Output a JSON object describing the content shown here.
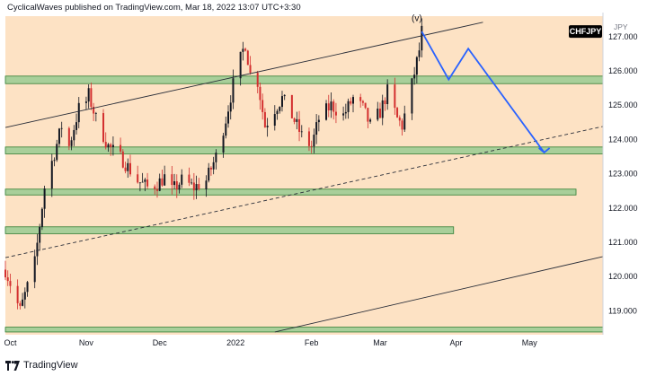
{
  "header": {
    "author": "CyclicalWaves",
    "publisher_text": "published on TradingView.com,",
    "timestamp": "Mar 18, 2022 13:07 UTC+3:30"
  },
  "footer": {
    "brand": "TradingView"
  },
  "colors": {
    "background": "#fde2c4",
    "zone_fill": "#a8cf9a",
    "zone_border": "#2e7d32",
    "bull_candle": "#131722",
    "bear_candle": "#d32f2f",
    "projection": "#2962ff",
    "symbol_badge": "#000000"
  },
  "chart_data": {
    "type": "candlestick",
    "symbol": "CHFJPY",
    "currency": "JPY",
    "x_ticks": [
      {
        "label": "Oct",
        "date": "2021-10-01"
      },
      {
        "label": "Nov",
        "date": "2021-11-01"
      },
      {
        "label": "Dec",
        "date": "2021-12-01"
      },
      {
        "label": "2022",
        "date": "2022-01-01"
      },
      {
        "label": "Feb",
        "date": "2022-02-01"
      },
      {
        "label": "Mar",
        "date": "2022-03-01"
      },
      {
        "label": "Apr",
        "date": "2022-04-01"
      },
      {
        "label": "May",
        "date": "2022-05-01"
      }
    ],
    "y_ticks": [
      "119.000",
      "120.000",
      "121.000",
      "122.000",
      "123.000",
      "124.000",
      "125.000",
      "126.000",
      "127.000"
    ],
    "ylim": [
      118.3,
      127.6
    ],
    "xlim": [
      "2021-09-29",
      "2022-05-31"
    ],
    "current_price": "127.150",
    "grid": false,
    "price_path": [
      [
        "2021-09-29",
        120.2
      ],
      [
        "2021-10-05",
        119.0
      ],
      [
        "2021-10-11",
        120.4
      ],
      [
        "2021-10-13",
        121.5
      ],
      [
        "2021-10-15",
        122.6
      ],
      [
        "2021-10-19",
        123.6
      ],
      [
        "2021-10-22",
        124.4
      ],
      [
        "2021-10-25",
        123.8
      ],
      [
        "2021-10-29",
        124.9
      ],
      [
        "2021-11-01",
        125.1
      ],
      [
        "2021-11-02",
        125.3
      ],
      [
        "2021-11-05",
        124.6
      ],
      [
        "2021-11-10",
        123.8
      ],
      [
        "2021-11-16",
        123.4
      ],
      [
        "2021-11-22",
        122.8
      ],
      [
        "2021-11-26",
        122.6
      ],
      [
        "2021-11-30",
        122.7
      ],
      [
        "2021-12-03",
        122.9
      ],
      [
        "2021-12-06",
        122.5
      ],
      [
        "2021-12-10",
        122.8
      ],
      [
        "2021-12-15",
        122.6
      ],
      [
        "2021-12-20",
        122.8
      ],
      [
        "2021-12-24",
        123.5
      ],
      [
        "2021-12-28",
        124.6
      ],
      [
        "2021-12-31",
        125.6
      ],
      [
        "2022-01-04",
        126.6
      ],
      [
        "2022-01-05",
        126.8
      ],
      [
        "2022-01-07",
        125.9
      ],
      [
        "2022-01-10",
        125.7
      ],
      [
        "2022-01-13",
        124.4
      ],
      [
        "2022-01-17",
        124.9
      ],
      [
        "2022-01-20",
        125.2
      ],
      [
        "2022-01-24",
        124.7
      ],
      [
        "2022-01-28",
        124.1
      ],
      [
        "2022-02-01",
        123.8
      ],
      [
        "2022-02-04",
        124.6
      ],
      [
        "2022-02-09",
        125.0
      ],
      [
        "2022-02-14",
        124.7
      ],
      [
        "2022-02-18",
        125.2
      ],
      [
        "2022-02-22",
        124.9
      ],
      [
        "2022-02-25",
        124.4
      ],
      [
        "2022-03-01",
        124.8
      ],
      [
        "2022-03-04",
        125.4
      ],
      [
        "2022-03-08",
        124.6
      ],
      [
        "2022-03-10",
        124.4
      ],
      [
        "2022-03-14",
        125.6
      ],
      [
        "2022-03-17",
        126.6
      ],
      [
        "2022-03-18",
        127.15
      ]
    ],
    "support_zones": [
      {
        "top": 125.85,
        "bottom": 125.63,
        "start": "2021-09-29",
        "end": "2022-05-31"
      },
      {
        "top": 123.78,
        "bottom": 123.58,
        "start": "2021-09-29",
        "end": "2022-05-31"
      },
      {
        "top": 122.55,
        "bottom": 122.38,
        "start": "2021-09-29",
        "end": "2022-05-20"
      },
      {
        "top": 121.45,
        "bottom": 121.25,
        "start": "2021-09-29",
        "end": "2022-03-31"
      },
      {
        "top": 118.52,
        "bottom": 118.38,
        "start": "2021-09-29",
        "end": "2022-05-31"
      }
    ],
    "trend_lines": [
      {
        "style": "solid",
        "from": [
          "2021-09-29",
          124.35
        ],
        "to": [
          "2022-04-12",
          127.42
        ]
      },
      {
        "style": "solid",
        "from": [
          "2022-01-17",
          118.38
        ],
        "to": [
          "2022-05-31",
          120.58
        ]
      },
      {
        "style": "dashed",
        "from": [
          "2021-09-29",
          120.55
        ],
        "to": [
          "2022-05-31",
          124.38
        ]
      }
    ],
    "projection_path": [
      [
        "2022-03-18",
        127.15
      ],
      [
        "2022-03-29",
        125.75
      ],
      [
        "2022-04-06",
        126.65
      ],
      [
        "2022-05-07",
        123.62
      ]
    ],
    "annotations": [
      {
        "text": "(v)",
        "date": "2022-03-16",
        "price": 127.45
      }
    ]
  }
}
